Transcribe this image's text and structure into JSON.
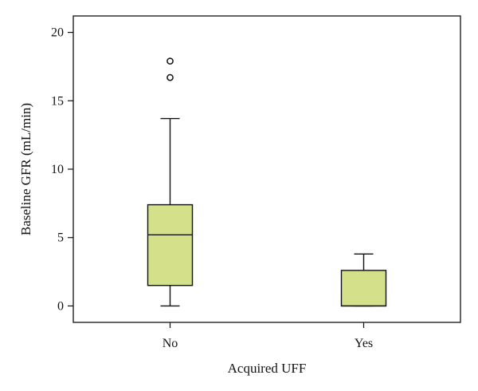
{
  "chart_data": {
    "type": "box",
    "xlabel": "Acquired UFF",
    "ylabel": "Baseline GFR (mL/min)",
    "ylim": [
      -1.2,
      21.2
    ],
    "yticks": [
      0,
      5,
      10,
      15,
      20
    ],
    "grid": false,
    "legend": "none",
    "box_color": "#d4e08a",
    "categories": [
      "No",
      "Yes"
    ],
    "boxes": [
      {
        "name": "No",
        "whisker_low": 0,
        "q1": 1.5,
        "median": 5.2,
        "q3": 7.4,
        "whisker_high": 13.7,
        "outliers": [
          16.7,
          17.9
        ]
      },
      {
        "name": "Yes",
        "whisker_low": 0,
        "q1": 0,
        "median": 0,
        "q3": 2.6,
        "whisker_high": 3.8,
        "outliers": []
      }
    ]
  }
}
